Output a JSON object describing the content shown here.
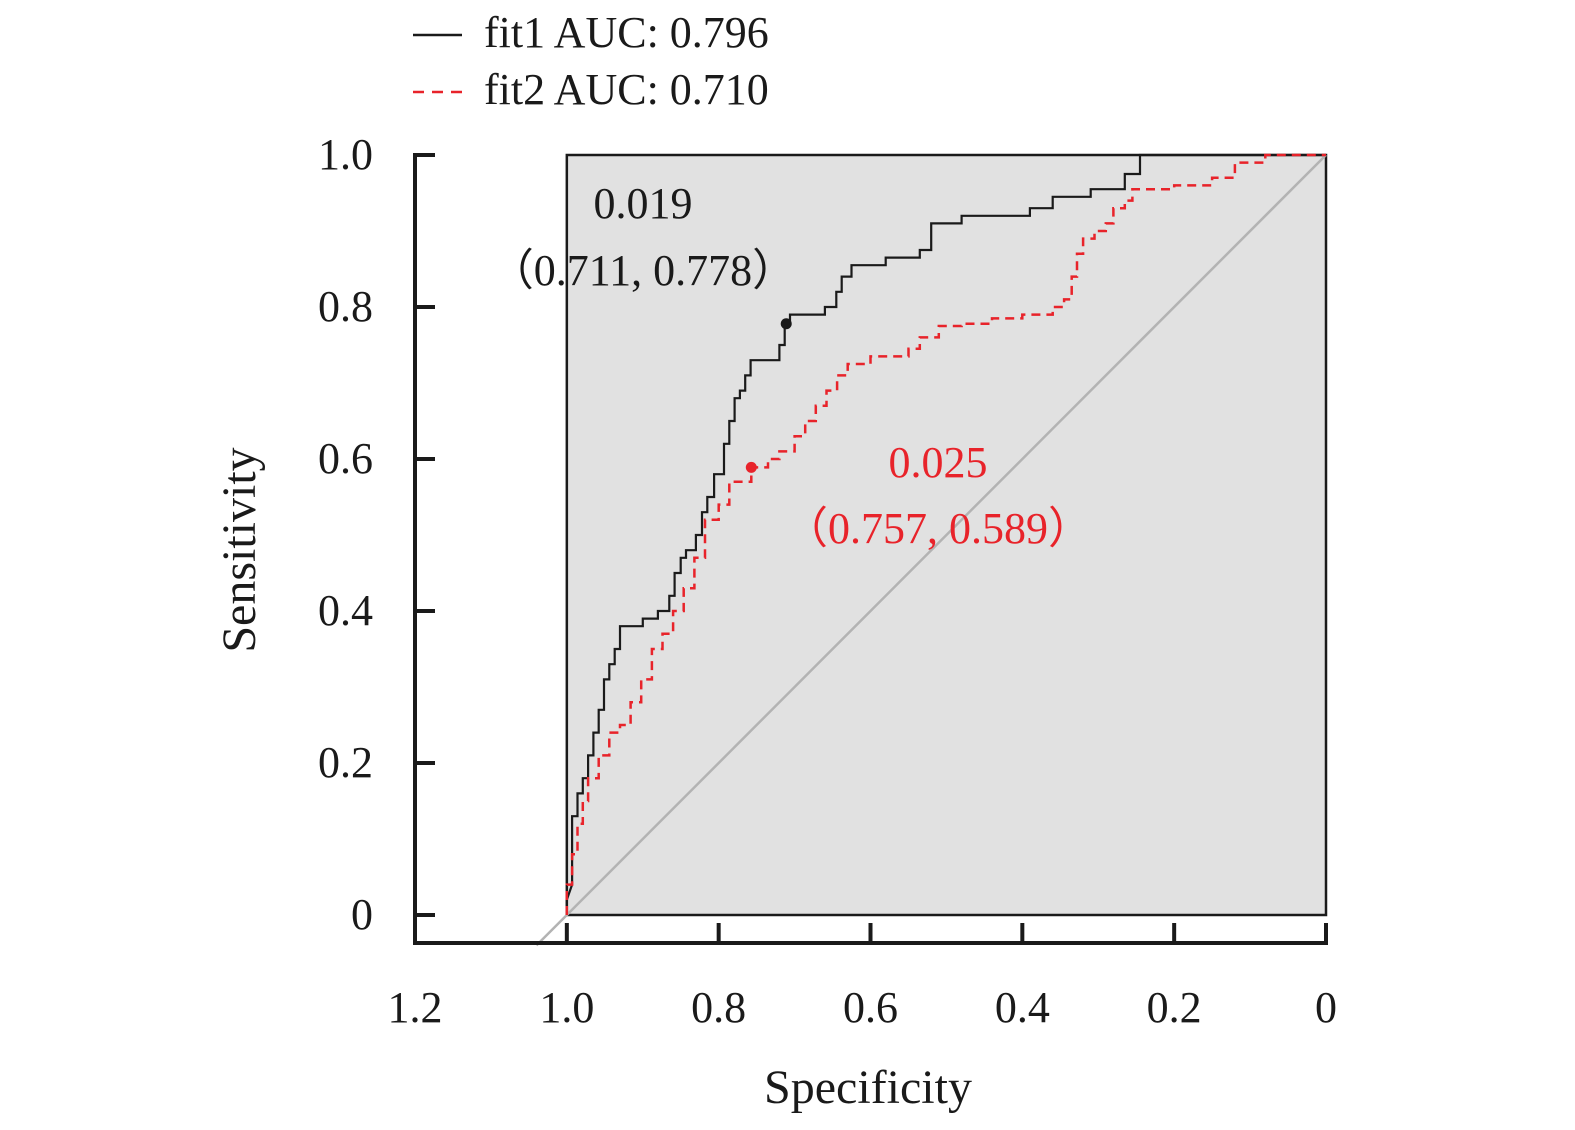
{
  "chart_data": {
    "type": "line",
    "xlabel": "Specificity",
    "ylabel": "Sensitivity",
    "xlim": [
      1.2,
      0
    ],
    "ylim": [
      0,
      1.0
    ],
    "x_ticks": [
      "1.2",
      "1.0",
      "0.8",
      "0.6",
      "0.4",
      "0.2",
      "0"
    ],
    "y_ticks": [
      "0",
      "0.2",
      "0.4",
      "0.6",
      "0.8",
      "1.0"
    ],
    "legend": {
      "placement": "top",
      "entries": [
        "fit1 AUC: 0.796",
        "fit2 AUC: 0.710"
      ]
    },
    "reference_line": {
      "x": [
        1.04,
        0
      ],
      "y": [
        -0.04,
        1.0
      ],
      "color": "#b3b3b3"
    },
    "series": [
      {
        "name": "fit1",
        "color": "#1a1a1a",
        "style": "solid",
        "auc_label": "fit1 AUC: 0.796",
        "points": [
          [
            1.0,
            0.0
          ],
          [
            1.0,
            0.02
          ],
          [
            0.993,
            0.04
          ],
          [
            0.993,
            0.13
          ],
          [
            0.986,
            0.13
          ],
          [
            0.986,
            0.16
          ],
          [
            0.979,
            0.16
          ],
          [
            0.979,
            0.18
          ],
          [
            0.972,
            0.18
          ],
          [
            0.972,
            0.21
          ],
          [
            0.965,
            0.21
          ],
          [
            0.965,
            0.24
          ],
          [
            0.958,
            0.24
          ],
          [
            0.958,
            0.27
          ],
          [
            0.951,
            0.27
          ],
          [
            0.951,
            0.31
          ],
          [
            0.944,
            0.31
          ],
          [
            0.944,
            0.33
          ],
          [
            0.937,
            0.33
          ],
          [
            0.937,
            0.35
          ],
          [
            0.93,
            0.35
          ],
          [
            0.93,
            0.38
          ],
          [
            0.9,
            0.38
          ],
          [
            0.9,
            0.39
          ],
          [
            0.88,
            0.39
          ],
          [
            0.88,
            0.4
          ],
          [
            0.865,
            0.4
          ],
          [
            0.865,
            0.42
          ],
          [
            0.858,
            0.42
          ],
          [
            0.858,
            0.45
          ],
          [
            0.85,
            0.45
          ],
          [
            0.85,
            0.47
          ],
          [
            0.843,
            0.47
          ],
          [
            0.843,
            0.48
          ],
          [
            0.83,
            0.48
          ],
          [
            0.83,
            0.5
          ],
          [
            0.822,
            0.5
          ],
          [
            0.822,
            0.53
          ],
          [
            0.815,
            0.53
          ],
          [
            0.815,
            0.55
          ],
          [
            0.806,
            0.55
          ],
          [
            0.806,
            0.58
          ],
          [
            0.793,
            0.58
          ],
          [
            0.793,
            0.62
          ],
          [
            0.786,
            0.62
          ],
          [
            0.786,
            0.65
          ],
          [
            0.779,
            0.65
          ],
          [
            0.779,
            0.68
          ],
          [
            0.772,
            0.68
          ],
          [
            0.772,
            0.69
          ],
          [
            0.765,
            0.69
          ],
          [
            0.765,
            0.71
          ],
          [
            0.758,
            0.71
          ],
          [
            0.758,
            0.73
          ],
          [
            0.72,
            0.73
          ],
          [
            0.72,
            0.75
          ],
          [
            0.713,
            0.75
          ],
          [
            0.713,
            0.778
          ],
          [
            0.706,
            0.778
          ],
          [
            0.706,
            0.79
          ],
          [
            0.66,
            0.79
          ],
          [
            0.66,
            0.8
          ],
          [
            0.645,
            0.8
          ],
          [
            0.645,
            0.82
          ],
          [
            0.638,
            0.82
          ],
          [
            0.638,
            0.84
          ],
          [
            0.625,
            0.84
          ],
          [
            0.625,
            0.855
          ],
          [
            0.58,
            0.855
          ],
          [
            0.58,
            0.865
          ],
          [
            0.535,
            0.865
          ],
          [
            0.535,
            0.875
          ],
          [
            0.52,
            0.875
          ],
          [
            0.52,
            0.91
          ],
          [
            0.48,
            0.91
          ],
          [
            0.48,
            0.92
          ],
          [
            0.39,
            0.92
          ],
          [
            0.39,
            0.93
          ],
          [
            0.36,
            0.93
          ],
          [
            0.36,
            0.945
          ],
          [
            0.31,
            0.945
          ],
          [
            0.31,
            0.955
          ],
          [
            0.265,
            0.955
          ],
          [
            0.265,
            0.975
          ],
          [
            0.245,
            0.975
          ],
          [
            0.245,
            1.0
          ],
          [
            0.0,
            1.0
          ]
        ]
      },
      {
        "name": "fit2",
        "color": "#e8232a",
        "style": "dashed",
        "auc_label": "fit2 AUC: 0.710",
        "points": [
          [
            1.0,
            0.0
          ],
          [
            1.0,
            0.04
          ],
          [
            0.993,
            0.04
          ],
          [
            0.993,
            0.08
          ],
          [
            0.986,
            0.08
          ],
          [
            0.986,
            0.12
          ],
          [
            0.979,
            0.12
          ],
          [
            0.979,
            0.15
          ],
          [
            0.972,
            0.15
          ],
          [
            0.972,
            0.18
          ],
          [
            0.958,
            0.18
          ],
          [
            0.958,
            0.21
          ],
          [
            0.944,
            0.21
          ],
          [
            0.944,
            0.24
          ],
          [
            0.93,
            0.24
          ],
          [
            0.93,
            0.25
          ],
          [
            0.916,
            0.25
          ],
          [
            0.916,
            0.28
          ],
          [
            0.902,
            0.28
          ],
          [
            0.902,
            0.31
          ],
          [
            0.888,
            0.31
          ],
          [
            0.888,
            0.35
          ],
          [
            0.874,
            0.35
          ],
          [
            0.874,
            0.37
          ],
          [
            0.86,
            0.37
          ],
          [
            0.86,
            0.4
          ],
          [
            0.846,
            0.4
          ],
          [
            0.846,
            0.43
          ],
          [
            0.832,
            0.43
          ],
          [
            0.832,
            0.47
          ],
          [
            0.818,
            0.47
          ],
          [
            0.818,
            0.52
          ],
          [
            0.8,
            0.52
          ],
          [
            0.8,
            0.54
          ],
          [
            0.786,
            0.54
          ],
          [
            0.786,
            0.57
          ],
          [
            0.757,
            0.57
          ],
          [
            0.757,
            0.589
          ],
          [
            0.735,
            0.589
          ],
          [
            0.735,
            0.6
          ],
          [
            0.72,
            0.6
          ],
          [
            0.72,
            0.61
          ],
          [
            0.7,
            0.61
          ],
          [
            0.7,
            0.63
          ],
          [
            0.686,
            0.63
          ],
          [
            0.686,
            0.65
          ],
          [
            0.672,
            0.65
          ],
          [
            0.672,
            0.67
          ],
          [
            0.658,
            0.67
          ],
          [
            0.658,
            0.69
          ],
          [
            0.644,
            0.69
          ],
          [
            0.644,
            0.71
          ],
          [
            0.63,
            0.71
          ],
          [
            0.63,
            0.725
          ],
          [
            0.6,
            0.725
          ],
          [
            0.6,
            0.735
          ],
          [
            0.55,
            0.735
          ],
          [
            0.55,
            0.745
          ],
          [
            0.535,
            0.745
          ],
          [
            0.535,
            0.76
          ],
          [
            0.51,
            0.76
          ],
          [
            0.51,
            0.775
          ],
          [
            0.48,
            0.775
          ],
          [
            0.48,
            0.778
          ],
          [
            0.44,
            0.778
          ],
          [
            0.44,
            0.785
          ],
          [
            0.4,
            0.785
          ],
          [
            0.4,
            0.79
          ],
          [
            0.36,
            0.79
          ],
          [
            0.36,
            0.8
          ],
          [
            0.345,
            0.8
          ],
          [
            0.345,
            0.81
          ],
          [
            0.335,
            0.81
          ],
          [
            0.335,
            0.84
          ],
          [
            0.328,
            0.84
          ],
          [
            0.328,
            0.87
          ],
          [
            0.32,
            0.87
          ],
          [
            0.32,
            0.89
          ],
          [
            0.305,
            0.89
          ],
          [
            0.305,
            0.9
          ],
          [
            0.29,
            0.9
          ],
          [
            0.29,
            0.91
          ],
          [
            0.28,
            0.91
          ],
          [
            0.28,
            0.93
          ],
          [
            0.265,
            0.93
          ],
          [
            0.265,
            0.94
          ],
          [
            0.255,
            0.94
          ],
          [
            0.255,
            0.955
          ],
          [
            0.2,
            0.955
          ],
          [
            0.2,
            0.96
          ],
          [
            0.15,
            0.96
          ],
          [
            0.15,
            0.97
          ],
          [
            0.12,
            0.97
          ],
          [
            0.12,
            0.99
          ],
          [
            0.08,
            0.99
          ],
          [
            0.08,
            1.0
          ],
          [
            0.0,
            1.0
          ]
        ]
      }
    ],
    "annotations": [
      {
        "series": "fit1",
        "point": [
          0.711,
          0.778
        ],
        "threshold": "0.019",
        "coords": "（0.711, 0.778）",
        "color": "#1a1a1a"
      },
      {
        "series": "fit2",
        "point": [
          0.757,
          0.589
        ],
        "threshold": "0.025",
        "coords": "（0.757, 0.589）",
        "color": "#e8232a"
      }
    ]
  }
}
